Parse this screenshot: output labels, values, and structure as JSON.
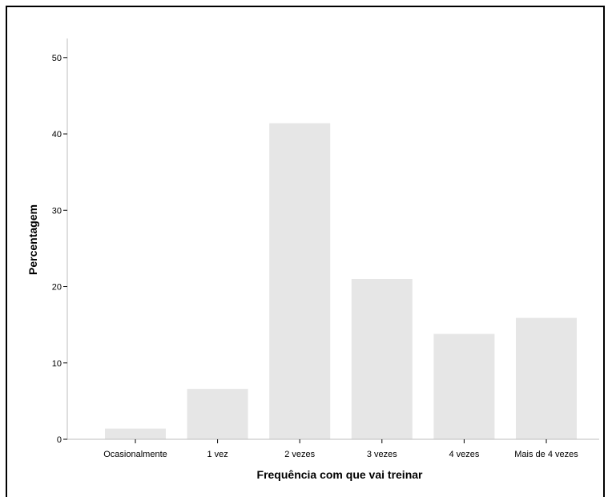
{
  "chart_data": {
    "type": "bar",
    "title": "",
    "xlabel": "Frequência com que vai treinar",
    "ylabel": "Percentagem",
    "categories": [
      "Ocasionalmente",
      "1 vez",
      "2 vezes",
      "3 vezes",
      "4 vezes",
      "Mais de 4 vezes"
    ],
    "values": [
      1.4,
      6.6,
      41.4,
      21.0,
      13.8,
      15.9
    ],
    "ylim": [
      0,
      52.5
    ],
    "yticks": [
      0,
      10,
      20,
      30,
      40,
      50
    ],
    "grid": false,
    "legend": "none",
    "bar_color": "#e6e6e6",
    "axis_color": "#000000"
  }
}
